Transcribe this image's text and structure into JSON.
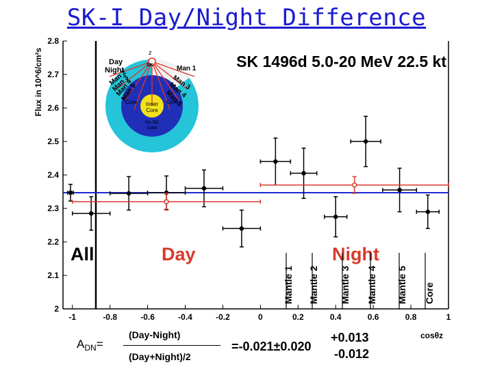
{
  "slide_title": "SK-I Day/Night Difference",
  "chart_data": {
    "type": "scatter",
    "title": "SK 1496d 5.0-20 MeV 22.5 kt",
    "ylabel": "Flux in 10^6/cm²s",
    "xlabel": "cosθz",
    "xlim": [
      -1.05,
      1.0
    ],
    "ylim": [
      2.0,
      2.8
    ],
    "x_ticks": [
      -1,
      -0.8,
      -0.6,
      -0.4,
      -0.2,
      0,
      0.2,
      0.4,
      0.6,
      0.8,
      1
    ],
    "y_ticks": [
      2.0,
      2.1,
      2.2,
      2.3,
      2.4,
      2.5,
      2.6,
      2.7,
      2.8
    ],
    "x_tick_labels": [
      "-1",
      "-0.8",
      "-0.6",
      "-0.4",
      "-0.2",
      "0",
      "0.2",
      "0.4",
      "0.6",
      "0.8",
      "1"
    ],
    "y_tick_labels": [
      "2",
      "2.1",
      "2.2",
      "2.3",
      "2.4",
      "2.5",
      "2.6",
      "2.7",
      "2.8"
    ],
    "all_average": 2.347,
    "all_point": {
      "x": -1.01,
      "y": 2.347,
      "xerr": 0.015,
      "yerr": 0.025
    },
    "series": [
      {
        "points": [
          {
            "x": -0.9,
            "xerr": 0.1,
            "y": 2.285,
            "yerr": 0.05
          },
          {
            "x": -0.7,
            "xerr": 0.1,
            "y": 2.345,
            "yerr": 0.05
          },
          {
            "x": -0.5,
            "xerr": 0.1,
            "y": 2.347,
            "yerr": 0.05
          },
          {
            "x": -0.3,
            "xerr": 0.1,
            "y": 2.36,
            "yerr": 0.055
          },
          {
            "x": -0.1,
            "xerr": 0.1,
            "y": 2.24,
            "yerr": 0.055
          },
          {
            "x": 0.08,
            "xerr": 0.08,
            "y": 2.44,
            "yerr": 0.07
          },
          {
            "x": 0.23,
            "xerr": 0.07,
            "y": 2.405,
            "yerr": 0.075
          },
          {
            "x": 0.4,
            "xerr": 0.06,
            "y": 2.275,
            "yerr": 0.06
          },
          {
            "x": 0.56,
            "xerr": 0.08,
            "y": 2.5,
            "yerr": 0.075
          },
          {
            "x": 0.74,
            "xerr": 0.09,
            "y": 2.355,
            "yerr": 0.065
          },
          {
            "x": 0.89,
            "xerr": 0.06,
            "y": 2.29,
            "yerr": 0.05
          }
        ]
      },
      {
        "color": "#d83a2a",
        "points": [
          {
            "x": -0.5,
            "xerr": 0.5,
            "y": 2.32,
            "yerr": 0.025
          },
          {
            "x": 0.5,
            "xerr": 0.5,
            "y": 2.37,
            "yerr": 0.025
          }
        ]
      }
    ],
    "region_labels": {
      "all": "All",
      "day": "Day",
      "night": "Night",
      "bins": [
        "Mantle 1",
        "Mantle 2",
        "Mantle 3",
        "Mantle 4",
        "Mantle 5",
        "Core"
      ]
    },
    "colors": {
      "average_line": "#1a2ad0",
      "day_night": "#d83a2a",
      "title": "#1a1ad0"
    }
  },
  "inset": {
    "day": "Day",
    "night": "Night",
    "z": "z",
    "sk": "SK",
    "man1": "Man 1",
    "left_labels": [
      "Man 2",
      "Man 3",
      "Man 4",
      "Man 5"
    ],
    "right_labels": [
      "Man 3",
      "Man 4",
      "Man 5"
    ],
    "core_left": "Core",
    "core_right": "Core",
    "inner_core": [
      "Inner",
      "Core"
    ],
    "no_sk_data": [
      "No SK",
      "Data"
    ]
  },
  "adn": {
    "lhs": "A",
    "lhs_sub": "DN",
    "equals": "=",
    "numerator": "(Day-Night)",
    "denominator": "(Day+Night)/2",
    "value": "=-0.021±0.020",
    "err_plus": "+0.013",
    "err_minus": "-0.012"
  }
}
